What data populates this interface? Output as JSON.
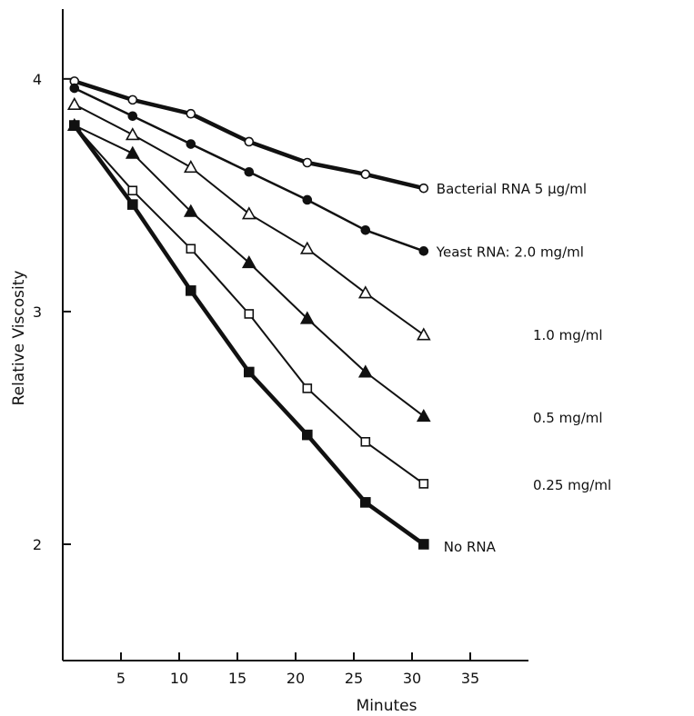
{
  "chart_data": {
    "type": "line",
    "title": "",
    "xlabel": "Minutes",
    "ylabel": "Relative Viscosity",
    "xlim": [
      0,
      40
    ],
    "ylim": [
      1.5,
      4.3
    ],
    "xticks": [
      5,
      10,
      15,
      20,
      25,
      30,
      35
    ],
    "yticks": [
      2,
      3,
      4
    ],
    "xtick_labels": [
      "5",
      "10",
      "15",
      "20",
      "25",
      "30",
      "35"
    ],
    "ytick_labels": [
      "2",
      "3",
      "4"
    ],
    "grid": false,
    "legend": "none",
    "series": [
      {
        "name": "Bacterial RNA 5 µg/ml",
        "marker": "open-circle",
        "x": [
          1,
          6,
          11,
          16,
          21,
          26,
          31
        ],
        "y": [
          3.99,
          3.91,
          3.85,
          3.73,
          3.64,
          3.59,
          3.53
        ]
      },
      {
        "name": "Yeast RNA: 2.0 mg/ml",
        "marker": "filled-circle",
        "x": [
          1,
          6,
          11,
          16,
          21,
          26,
          31
        ],
        "y": [
          3.96,
          3.84,
          3.72,
          3.6,
          3.48,
          3.35,
          3.26
        ]
      },
      {
        "name": "1.0 mg/ml",
        "marker": "open-triangle",
        "x": [
          1,
          6,
          11,
          16,
          21,
          26,
          31
        ],
        "y": [
          3.89,
          3.76,
          3.62,
          3.42,
          3.27,
          3.08,
          2.9
        ]
      },
      {
        "name": "0.5 mg/ml",
        "marker": "filled-triangle",
        "x": [
          1,
          6,
          11,
          16,
          21,
          26,
          31
        ],
        "y": [
          3.8,
          3.68,
          3.43,
          3.21,
          2.97,
          2.74,
          2.55
        ]
      },
      {
        "name": "0.25 mg/ml",
        "marker": "open-square",
        "x": [
          1,
          6,
          11,
          16,
          21,
          26,
          31
        ],
        "y": [
          3.8,
          3.52,
          3.27,
          2.99,
          2.67,
          2.44,
          2.26
        ]
      },
      {
        "name": "No RNA",
        "marker": "filled-square",
        "x": [
          1,
          6,
          11,
          16,
          21,
          26,
          31
        ],
        "y": [
          3.8,
          3.46,
          3.09,
          2.74,
          2.47,
          2.18,
          2.0
        ]
      }
    ]
  }
}
